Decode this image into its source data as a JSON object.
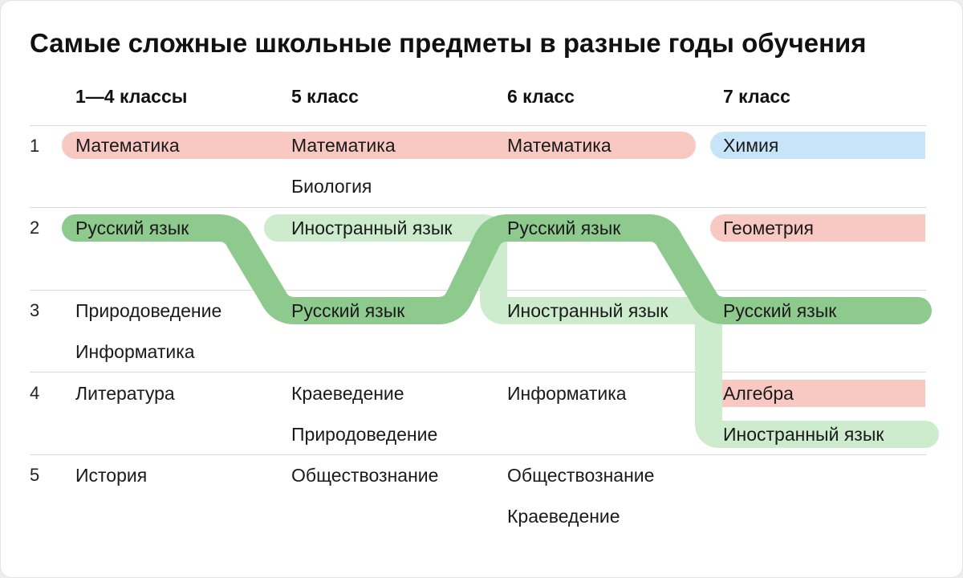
{
  "title": "Самые сложные школьные предметы в разные годы обучения",
  "columns": [
    "1—4 классы",
    "5 класс",
    "6 класс",
    "7 класс"
  ],
  "ranks": [
    "1",
    "2",
    "3",
    "4",
    "5"
  ],
  "colors": {
    "math_pink": "#f8c8c2",
    "chem_blue": "#c8e4f8",
    "russian_green": "#8ec98e",
    "foreign_light_green": "#cdebcd"
  },
  "cells": {
    "c1": {
      "r1": [
        "Математика"
      ],
      "r2": [
        "Русский язык"
      ],
      "r3": [
        "Природоведение",
        "Информатика"
      ],
      "r4": [
        "Литература"
      ],
      "r5": [
        "История"
      ]
    },
    "c2": {
      "r1": [
        "Математика",
        "Биология"
      ],
      "r2": [
        "Иностранный язык"
      ],
      "r3": [
        "Русский язык"
      ],
      "r4": [
        "Краеведение",
        "Природоведение"
      ],
      "r5": [
        "Обществознание"
      ]
    },
    "c3": {
      "r1": [
        "Математика"
      ],
      "r2": [
        "Русский язык"
      ],
      "r3": [
        "Иностранный язык"
      ],
      "r4": [
        "Информатика"
      ],
      "r5": [
        "Обществознание",
        "Краеведение"
      ]
    },
    "c4": {
      "r1": [
        "Химия"
      ],
      "r2": [
        "Геометрия"
      ],
      "r3": [
        "Русский язык"
      ],
      "r4": [
        "Алгебра",
        "Иностранный язык"
      ],
      "r5": []
    }
  }
}
